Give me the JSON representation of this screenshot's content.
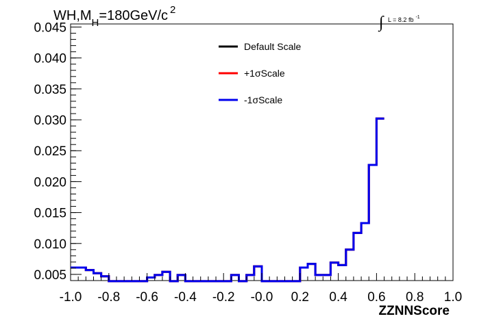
{
  "chart_data": {
    "type": "line",
    "style": "step-histogram",
    "title": {
      "prefix": "WH,M",
      "subscript": "H",
      "value": "=180GeV/c",
      "superscript": "2"
    },
    "luminosity": {
      "symbol": "∫",
      "text": "L = 8.2 fb",
      "superscript": "-1"
    },
    "xlabel": "ZZNNScore",
    "ylabel": "",
    "xlim": [
      -1.0,
      1.0
    ],
    "ylim": [
      0.004,
      0.0455
    ],
    "x_ticks": [
      -1.0,
      -0.8,
      -0.6,
      -0.4,
      -0.2,
      0.0,
      0.2,
      0.4,
      0.6,
      0.8,
      1.0
    ],
    "x_tick_labels": [
      "-1.0",
      "-0.8",
      "-0.6",
      "-0.4",
      "-0.2",
      "-0.0",
      "0.2",
      "0.4",
      "0.6",
      "0.8",
      "1.0"
    ],
    "y_ticks": [
      0.005,
      0.01,
      0.015,
      0.02,
      0.025,
      0.03,
      0.035,
      0.04,
      0.045
    ],
    "y_tick_labels": [
      "0.005",
      "0.010",
      "0.015",
      "0.020",
      "0.025",
      "0.030",
      "0.035",
      "0.040",
      "0.045"
    ],
    "grid": false,
    "legend_position": "top-center",
    "bin_edges_start": -1.0,
    "bin_width": 0.04,
    "series": [
      {
        "name": "Default Scale",
        "color": "#000000",
        "values": [
          0.0061,
          0.0061,
          0.0057,
          0.0052,
          0.0047,
          0.0039,
          0.0039,
          0.0039,
          0.0039,
          0.0039,
          0.0045,
          0.0049,
          0.0054,
          0.0039,
          0.0049,
          0.0039,
          0.0039,
          0.0039,
          0.0039,
          0.0039,
          0.0039,
          0.0049,
          0.0039,
          0.0049,
          0.0063,
          0.0039,
          0.0039,
          0.0039,
          0.0039,
          0.0039,
          0.0061,
          0.0067,
          0.0049,
          0.0049,
          0.0069,
          0.0065,
          0.009,
          0.0117,
          0.0133,
          0.0227,
          0.0302
        ]
      },
      {
        "name": "+1σScale",
        "color": "#ff0000",
        "values": [
          0.0061,
          0.0061,
          0.0057,
          0.0052,
          0.0047,
          0.0039,
          0.0039,
          0.0039,
          0.0039,
          0.0039,
          0.0045,
          0.0049,
          0.0054,
          0.0039,
          0.0049,
          0.0039,
          0.0039,
          0.0039,
          0.0039,
          0.0039,
          0.0039,
          0.0049,
          0.0039,
          0.0049,
          0.0063,
          0.0039,
          0.0039,
          0.0039,
          0.0039,
          0.0039,
          0.0061,
          0.0067,
          0.0049,
          0.0049,
          0.0069,
          0.0065,
          0.009,
          0.0117,
          0.0133,
          0.0227,
          0.0302
        ]
      },
      {
        "name": "-1σScale",
        "color": "#0000ee",
        "values": [
          0.0061,
          0.0061,
          0.0057,
          0.0052,
          0.0047,
          0.0039,
          0.0039,
          0.0039,
          0.0039,
          0.0039,
          0.0045,
          0.0049,
          0.0054,
          0.0039,
          0.0049,
          0.0039,
          0.0039,
          0.0039,
          0.0039,
          0.0039,
          0.0039,
          0.0049,
          0.0039,
          0.0049,
          0.0063,
          0.0039,
          0.0039,
          0.0039,
          0.0039,
          0.0039,
          0.0061,
          0.0067,
          0.0049,
          0.0049,
          0.0069,
          0.0065,
          0.009,
          0.0117,
          0.0133,
          0.0227,
          0.0302
        ]
      }
    ]
  }
}
